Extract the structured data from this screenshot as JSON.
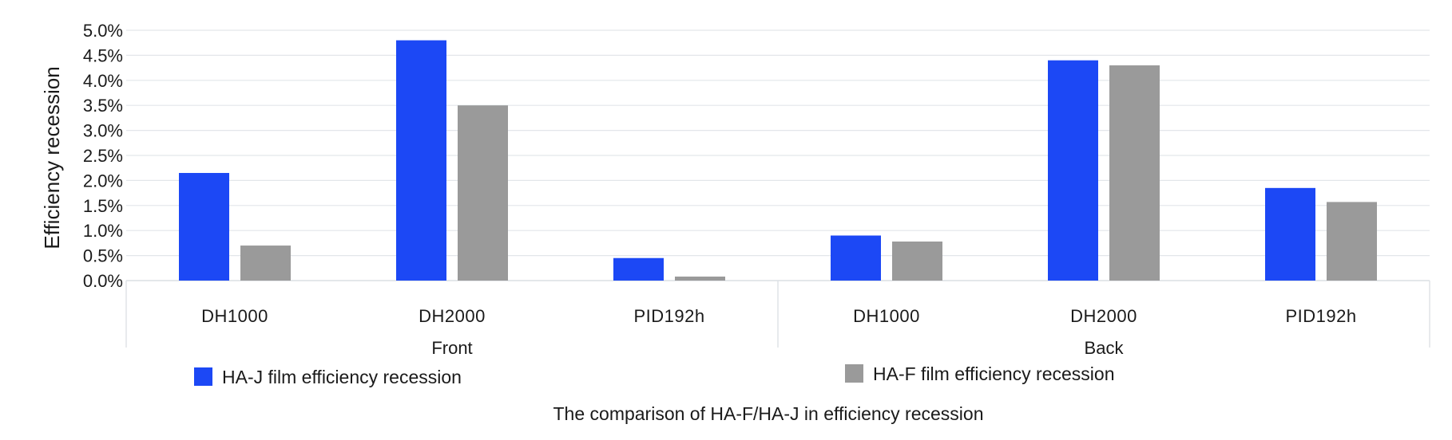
{
  "chart_data": {
    "type": "bar",
    "ylabel": "Efficiency recession",
    "ylim": [
      0,
      5.0
    ],
    "yticks": [
      "0.0%",
      "0.5%",
      "1.0%",
      "1.5%",
      "2.0%",
      "2.5%",
      "3.0%",
      "3.5%",
      "4.0%",
      "4.5%",
      "5.0%"
    ],
    "groups": [
      {
        "name": "Front",
        "categories": [
          "DH1000",
          "DH2000",
          "PID192h"
        ]
      },
      {
        "name": "Back",
        "categories": [
          "DH1000",
          "DH2000",
          "PID192h"
        ]
      }
    ],
    "series": [
      {
        "name": "HA-J film efficiency recession",
        "color": "#1c48f5",
        "values": [
          2.15,
          4.8,
          0.45,
          0.9,
          4.4,
          1.85
        ]
      },
      {
        "name": "HA-F film efficiency recession",
        "color": "#9a9a9a",
        "values": [
          0.7,
          3.5,
          0.08,
          0.78,
          4.3,
          1.57
        ]
      }
    ],
    "grid": true,
    "legend_position": "bottom",
    "caption": "The comparison of HA-F/HA-J in efficiency recession"
  }
}
